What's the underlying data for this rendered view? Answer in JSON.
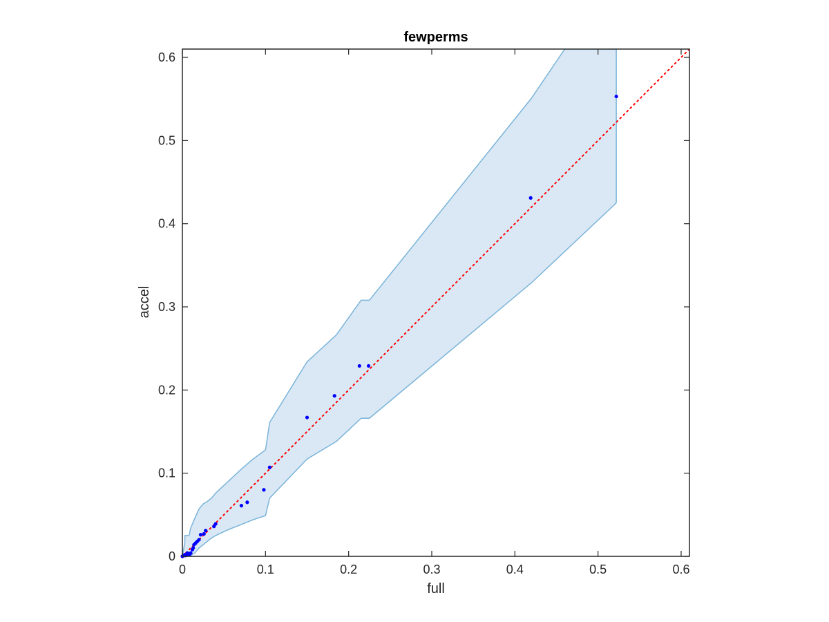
{
  "chart_data": {
    "type": "scatter",
    "title": "fewperms",
    "xlabel": "full",
    "ylabel": "accel",
    "xlim": [
      0,
      0.61
    ],
    "ylim": [
      0,
      0.61
    ],
    "xticks": [
      0,
      0.1,
      0.2,
      0.3,
      0.4,
      0.5,
      0.6
    ],
    "yticks": [
      0,
      0.1,
      0.2,
      0.3,
      0.4,
      0.5,
      0.6
    ],
    "xtick_labels": [
      "0",
      "0.1",
      "0.2",
      "0.3",
      "0.4",
      "0.5",
      "0.6"
    ],
    "ytick_labels": [
      "0",
      "0.1",
      "0.2",
      "0.3",
      "0.4",
      "0.5",
      "0.6"
    ],
    "grid": false,
    "legend": "none",
    "series": [
      {
        "kind": "points",
        "color": "#0000ff",
        "x": [
          0.0,
          0.001,
          0.002,
          0.003,
          0.004,
          0.005,
          0.006,
          0.007,
          0.008,
          0.009,
          0.01,
          0.012,
          0.013,
          0.014,
          0.016,
          0.018,
          0.02,
          0.022,
          0.026,
          0.028,
          0.038,
          0.04,
          0.071,
          0.078,
          0.098,
          0.105,
          0.15,
          0.183,
          0.213,
          0.224,
          0.419,
          0.522
        ],
        "y": [
          0.0,
          0.001,
          0.001,
          0.002,
          0.001,
          0.002,
          0.004,
          0.003,
          0.002,
          0.003,
          0.004,
          0.008,
          0.01,
          0.014,
          0.016,
          0.018,
          0.02,
          0.026,
          0.027,
          0.031,
          0.036,
          0.039,
          0.061,
          0.065,
          0.08,
          0.107,
          0.167,
          0.193,
          0.229,
          0.229,
          0.431,
          0.553
        ]
      },
      {
        "kind": "reference-line",
        "style": "dotted",
        "color": "#ff0000",
        "x": [
          0,
          0.61
        ],
        "y": [
          0,
          0.61
        ]
      },
      {
        "kind": "confidence-band",
        "fill": "#d9e8f4",
        "edge": "#7ab3d9",
        "x": [
          0,
          0.003,
          0.003,
          0.008,
          0.01,
          0.015,
          0.02,
          0.025,
          0.03,
          0.035,
          0.04,
          0.055,
          0.07,
          0.085,
          0.1,
          0.105,
          0.15,
          0.185,
          0.215,
          0.225,
          0.42,
          0.522
        ],
        "upper": [
          0.0,
          0.017,
          0.025,
          0.025,
          0.034,
          0.046,
          0.057,
          0.063,
          0.066,
          0.07,
          0.076,
          0.09,
          0.104,
          0.117,
          0.128,
          0.161,
          0.234,
          0.266,
          0.308,
          0.308,
          0.551,
          0.61
        ],
        "upper_extra": {
          "x": [
            0.46,
            0.522
          ],
          "y": [
            0.61,
            0.61
          ]
        },
        "lower": [
          0.0,
          0.0,
          0.0,
          0.0,
          0.001,
          0.004,
          0.01,
          0.014,
          0.018,
          0.022,
          0.025,
          0.032,
          0.038,
          0.044,
          0.049,
          0.07,
          0.117,
          0.138,
          0.166,
          0.166,
          0.329,
          0.425
        ]
      }
    ]
  }
}
